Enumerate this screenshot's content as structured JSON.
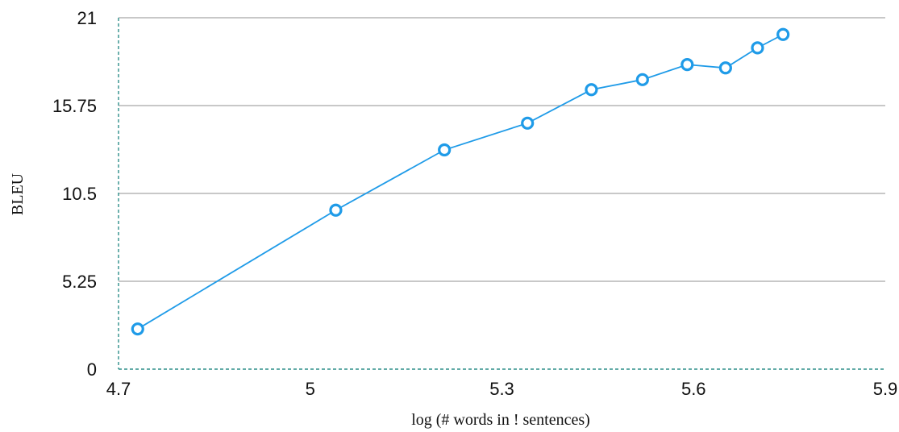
{
  "chart_data": {
    "type": "line",
    "xlabel": "log (# words in ! sentences)",
    "ylabel": "BLEU",
    "xlim": [
      4.7,
      5.9
    ],
    "ylim": [
      0,
      21
    ],
    "x_ticks": [
      "4.7",
      "5",
      "5.3",
      "5.6",
      "5.9"
    ],
    "y_ticks": [
      "0",
      "5.25",
      "10.5",
      "15.75",
      "21"
    ],
    "grid": "horizontal",
    "series": [
      {
        "x": [
          4.73,
          5.04,
          5.21,
          5.34,
          5.44,
          5.52,
          5.59,
          5.65,
          5.7,
          5.74
        ],
        "y": [
          2.4,
          9.5,
          13.1,
          14.7,
          16.7,
          17.3,
          18.2,
          18.0,
          19.2,
          20.0
        ]
      }
    ],
    "colors": {
      "series": "#1f9be8",
      "grid": "#a6a6a6",
      "axis": "#2e8f8a"
    }
  }
}
